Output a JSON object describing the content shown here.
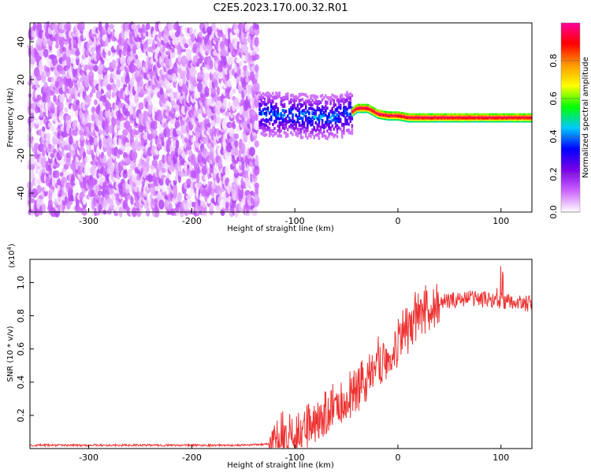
{
  "title": "C2E5.2023.170.00.32.R01",
  "chart_data": [
    {
      "type": "heatmap",
      "xlabel": "Height of straight line (km)",
      "ylabel": "Frequency (Hz)",
      "xlim": [
        -357,
        130
      ],
      "ylim": [
        -50,
        50
      ],
      "xticks": [
        -300,
        -200,
        -100,
        0,
        100
      ],
      "yticks": [
        -40,
        -20,
        0,
        20,
        40
      ],
      "colorbar": {
        "label": "Normalized spectral amplitude",
        "range": [
          0,
          1
        ],
        "ticks": [
          0.0,
          0.2,
          0.4,
          0.6,
          0.8
        ],
        "colors": [
          "#ffffff",
          "#cc66ff",
          "#7a00e6",
          "#0000ff",
          "#00c8ff",
          "#00ff00",
          "#ffff00",
          "#ff9900",
          "#ff0000",
          "#ff0099"
        ]
      },
      "regions": [
        {
          "x": [
            -357,
            -135
          ],
          "freq": [
            -50,
            50
          ],
          "amplitude": [
            0.0,
            0.15
          ]
        },
        {
          "x": [
            -135,
            -45
          ],
          "freq": [
            -15,
            8
          ],
          "amplitude": [
            0.1,
            0.45
          ]
        },
        {
          "x": [
            -45,
            130
          ],
          "freq": [
            -2,
            5
          ],
          "amplitude": [
            0.5,
            1.0
          ]
        }
      ],
      "ridge": {
        "x": [
          -135,
          -100,
          -70,
          -55,
          -45,
          -40,
          -30,
          -20,
          -10,
          0,
          10,
          130
        ],
        "freq": [
          2,
          1,
          0,
          1,
          3,
          5,
          5,
          2,
          1,
          1,
          0,
          0
        ]
      }
    },
    {
      "type": "line",
      "xlabel": "Height of straight line (km)",
      "ylabel": "SNR (10 * v/v)",
      "y_multiplier": "(x10",
      "y_exponent": "4",
      "y_multiplier_close": ")",
      "xlim": [
        -357,
        130
      ],
      "ylim": [
        0.0,
        1.14
      ],
      "xticks": [
        -300,
        -200,
        -100,
        0,
        100
      ],
      "yticks": [
        0.2,
        0.4,
        0.6,
        0.8,
        1.0
      ],
      "series": [
        {
          "color": "#ee3333",
          "x": [
            -357,
            -300,
            -250,
            -200,
            -150,
            -120,
            -110,
            -100,
            -90,
            -80,
            -70,
            -60,
            -50,
            -40,
            -30,
            -20,
            -10,
            0,
            10,
            20,
            30,
            40,
            50,
            60,
            70,
            80,
            90,
            100,
            110,
            130
          ],
          "y": [
            0.02,
            0.02,
            0.02,
            0.02,
            0.02,
            0.03,
            0.05,
            0.08,
            0.12,
            0.16,
            0.2,
            0.26,
            0.3,
            0.36,
            0.42,
            0.5,
            0.56,
            0.62,
            0.74,
            0.8,
            0.85,
            0.88,
            0.89,
            0.9,
            0.91,
            0.9,
            0.9,
            0.89,
            0.88,
            0.87
          ]
        }
      ]
    }
  ]
}
